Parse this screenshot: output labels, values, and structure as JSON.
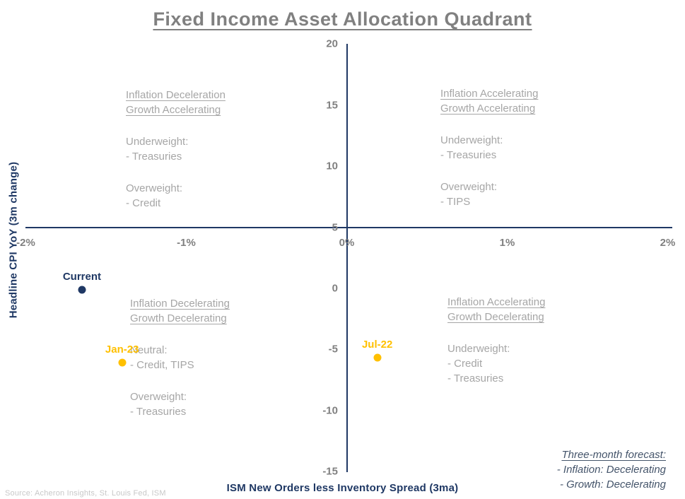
{
  "chart_data": {
    "type": "scatter",
    "title": "Fixed Income Asset Allocation Quadrant",
    "xlabel": "ISM New Orders less Inventory Spread (3ma)",
    "ylabel": "Headline CPI YoY (3m change)",
    "xlim": [
      -2,
      2
    ],
    "ylim": [
      -15,
      20
    ],
    "axis_cross": {
      "x_value": 0,
      "y_value": 5
    },
    "grid": false,
    "x_ticks": [
      {
        "value": -2,
        "label": "-2%"
      },
      {
        "value": -1,
        "label": "-1%"
      },
      {
        "value": 0,
        "label": "0%"
      },
      {
        "value": 1,
        "label": "1%"
      },
      {
        "value": 2,
        "label": "2%"
      }
    ],
    "y_ticks": [
      20,
      15,
      10,
      5,
      0,
      -5,
      -10,
      -15
    ],
    "points": [
      {
        "label": "Current",
        "x": -1.65,
        "y": -0.1,
        "color": "#1F3864"
      },
      {
        "label": "Jan-23",
        "x": -1.4,
        "y": -6.05,
        "color": "#FFC000"
      },
      {
        "label": "Jul-22",
        "x": 0.19,
        "y": -5.65,
        "color": "#FFC000"
      }
    ],
    "quadrants": [
      {
        "position": "top-left",
        "header": [
          "Inflation Deceleration",
          "Growth Accelerating"
        ],
        "sections": [
          [
            "Underweight:",
            "- Treasuries"
          ],
          [
            "Overweight:",
            "- Credit"
          ]
        ]
      },
      {
        "position": "top-right",
        "header": [
          "Inflation Accelerating",
          "Growth Accelerating"
        ],
        "sections": [
          [
            "Underweight:",
            "- Treasuries"
          ],
          [
            "Overweight:",
            "- TIPS"
          ]
        ]
      },
      {
        "position": "bottom-left",
        "header": [
          "Inflation Decelerating",
          "Growth Decelerating"
        ],
        "sections": [
          [
            "Neutral:",
            "- Credit, TIPS"
          ],
          [
            "Overweight:",
            "- Treasuries"
          ]
        ]
      },
      {
        "position": "bottom-right",
        "header": [
          "Inflation Accelerating",
          "Growth Decelerating"
        ],
        "sections": [
          [
            "Underweight:",
            "- Credit",
            "- Treasuries"
          ]
        ]
      }
    ],
    "colors": {
      "axis": "#1F3864",
      "current_point": "#1F3864",
      "dated_points": "#FFC000",
      "quadrant_text": "#A6A6A6",
      "title": "#808080"
    }
  },
  "forecast": {
    "title": "Three-month forecast:",
    "lines": [
      "- Inflation: Decelerating",
      "- Growth: Decelerating"
    ]
  },
  "source": "Source: Acheron Insights, St. Louis Fed, ISM"
}
